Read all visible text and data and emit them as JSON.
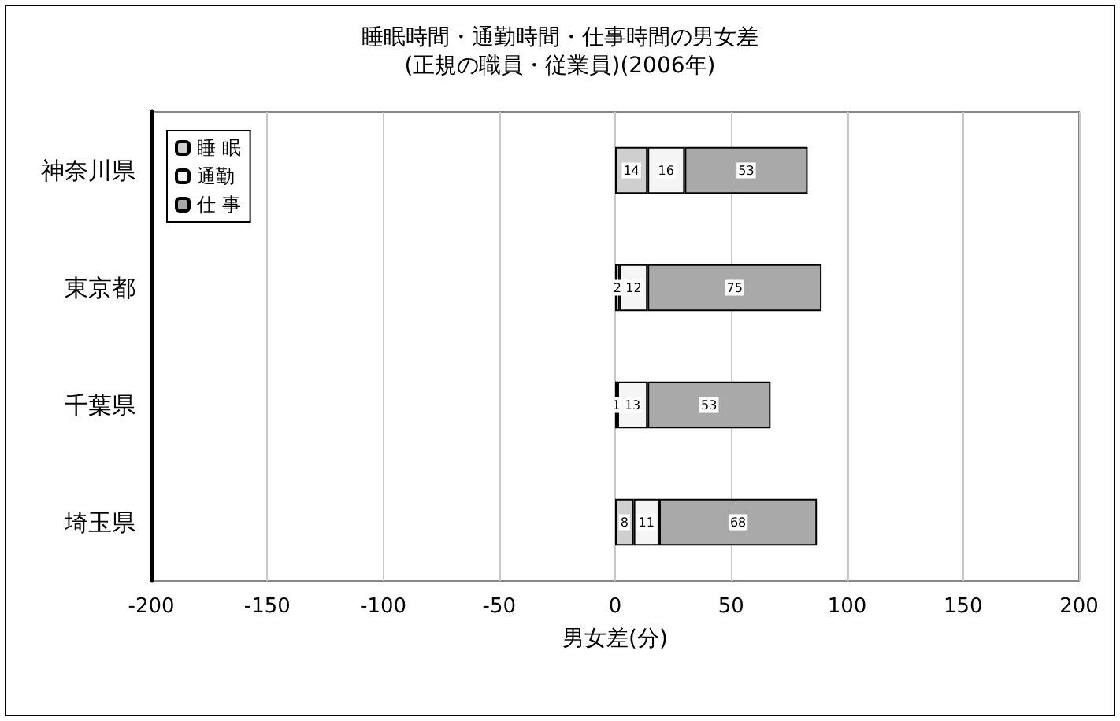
{
  "chart_data": {
    "type": "bar",
    "orientation": "horizontal",
    "stacked": true,
    "title": "睡眠時間・通勤時間・仕事時間の男女差",
    "subtitle": "(正規の職員・従業員)(2006年)",
    "xlabel": "男女差(分)",
    "categories": [
      "神奈川県",
      "東京都",
      "千葉県",
      "埼玉県"
    ],
    "series": [
      {
        "name": "睡 眠",
        "color": "#cfcfcf",
        "values": [
          14,
          2,
          1,
          8
        ]
      },
      {
        "name": "通勤",
        "color": "#f5f5f5",
        "values": [
          16,
          12,
          13,
          11
        ]
      },
      {
        "name": "仕 事",
        "color": "#a9a9a9",
        "values": [
          53,
          75,
          53,
          68
        ]
      }
    ],
    "xlim": [
      -200,
      200
    ],
    "xticks": [
      -200,
      -150,
      -100,
      -50,
      0,
      50,
      100,
      150,
      200
    ],
    "grid": "x",
    "legend": "top left",
    "data_labels": true
  }
}
